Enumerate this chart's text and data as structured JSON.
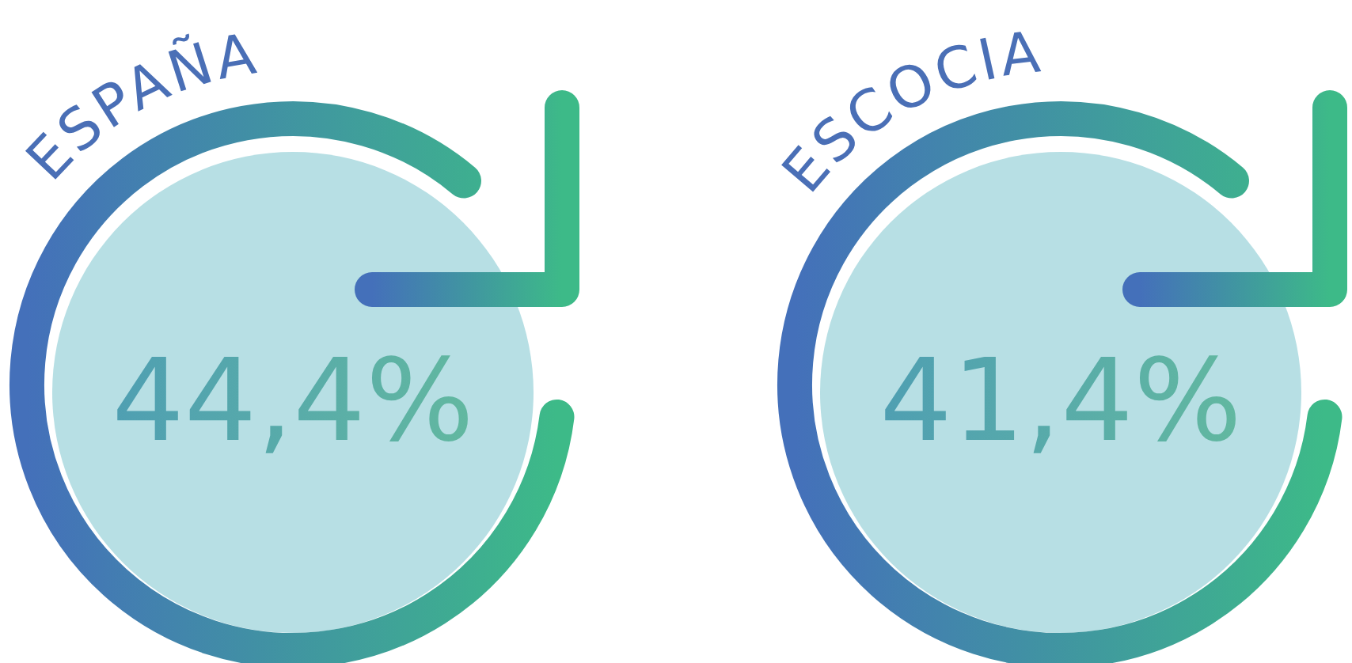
{
  "chart_data": [
    {
      "type": "other",
      "title": "ESPAÑA",
      "categories": [
        null
      ],
      "values": [
        44.4
      ],
      "value_labels": [
        "44,4%"
      ]
    },
    {
      "type": "other",
      "title": "ESCOCIA",
      "categories": [
        null
      ],
      "values": [
        41.4
      ],
      "value_labels": [
        "41,4%"
      ]
    }
  ]
}
